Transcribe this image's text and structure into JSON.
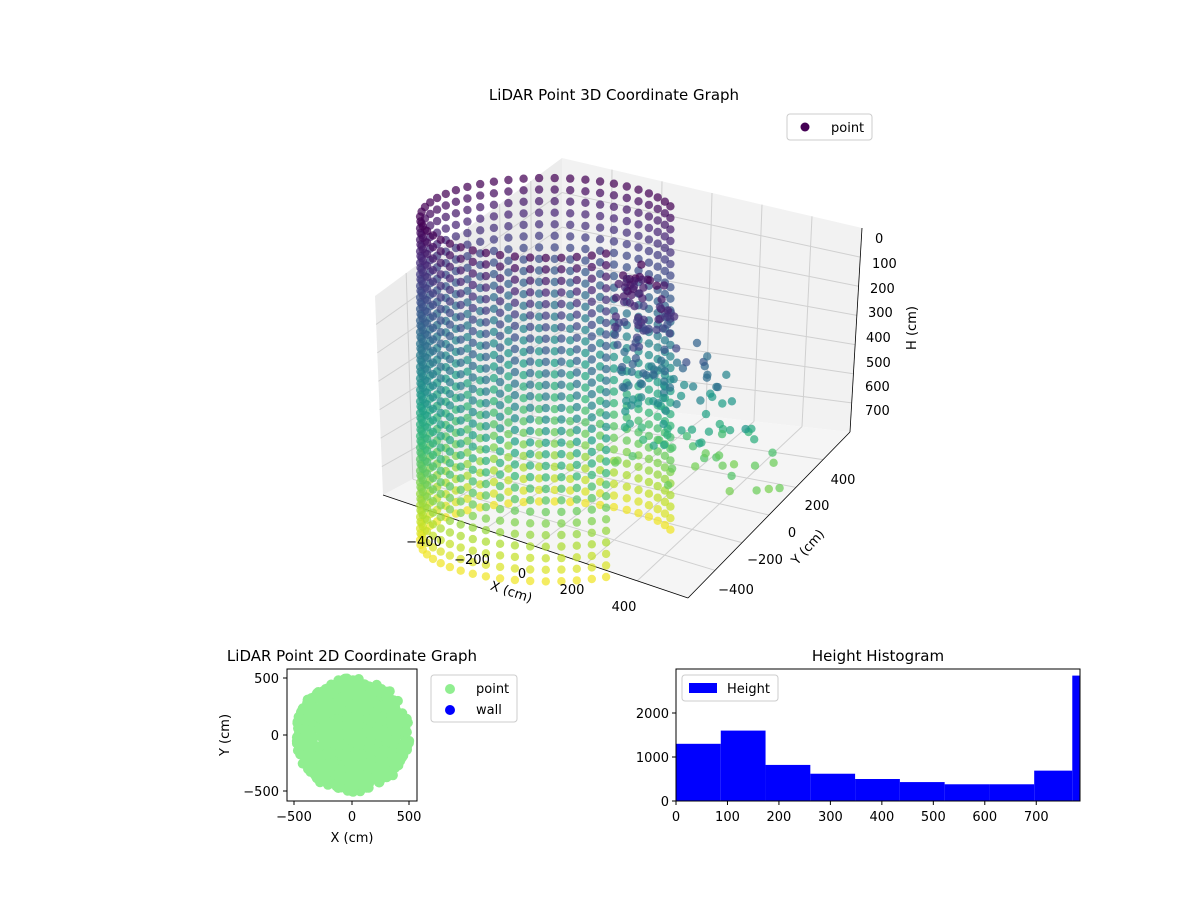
{
  "chart_data": [
    {
      "type": "scatter",
      "projection": "3d",
      "title": "LiDAR Point 3D Coordinate Graph",
      "xlabel": "X (cm)",
      "ylabel": "Y (cm)",
      "zlabel": "H (cm)",
      "xticks": [
        "−400",
        "−200",
        "0",
        "200",
        "400"
      ],
      "yticks": [
        "−400",
        "−200",
        "0",
        "200",
        "400"
      ],
      "zticks": [
        "0",
        "100",
        "200",
        "300",
        "400",
        "500",
        "600",
        "700"
      ],
      "xlim": [
        -500,
        500
      ],
      "ylim": [
        -500,
        500
      ],
      "zlim": [
        0,
        780
      ],
      "z_inverted": true,
      "colormap": "viridis",
      "legend": {
        "entries": [
          "point"
        ],
        "placement": "top-right",
        "marker_color": "#440154"
      },
      "series": [
        {
          "name": "point",
          "description_of_shape": "cylindrical wall of points, radius ~490 cm, height 0-780 cm, plus inner scattered returns",
          "radius_cm": 490,
          "h_range": [
            0,
            780
          ],
          "points": [
            {
              "x": 480,
              "y": 100,
              "h": 60
            },
            {
              "x": 470,
              "y": -150,
              "h": 120
            },
            {
              "x": 400,
              "y": 280,
              "h": 200
            },
            {
              "x": 300,
              "y": 380,
              "h": 300
            },
            {
              "x": -100,
              "y": 480,
              "h": 400
            },
            {
              "x": -350,
              "y": 340,
              "h": 500
            },
            {
              "x": -470,
              "y": 120,
              "h": 600
            },
            {
              "x": -460,
              "y": -180,
              "h": 700
            },
            {
              "x": -250,
              "y": -420,
              "h": 750
            },
            {
              "x": 100,
              "y": -480,
              "h": 650
            },
            {
              "x": 350,
              "y": -340,
              "h": 550
            },
            {
              "x": 200,
              "y": 50,
              "h": 350
            }
          ]
        }
      ]
    },
    {
      "type": "scatter",
      "title": "LiDAR Point 2D Coordinate Graph",
      "xlabel": "X (cm)",
      "ylabel": "Y (cm)",
      "xticks": [
        "−500",
        "0",
        "500"
      ],
      "yticks": [
        "−500",
        "0",
        "500"
      ],
      "xlim": [
        -570,
        570
      ],
      "ylim": [
        -570,
        570
      ],
      "legend": {
        "entries": [
          "point",
          "wall"
        ],
        "placement": "right-outside",
        "colors": [
          "#90ee90",
          "#0000ff"
        ]
      },
      "series": [
        {
          "name": "point",
          "color": "#90ee90",
          "shape": "filled disc, radius ~500 cm, right-side edge ragged between x=300 and x=480"
        },
        {
          "name": "wall",
          "color": "#0000ff",
          "points": []
        }
      ]
    },
    {
      "type": "bar",
      "title": "Height Histogram",
      "legend": {
        "entries": [
          "Height"
        ],
        "placement": "top-left",
        "colors": [
          "#0000ff"
        ]
      },
      "xticks": [
        "0",
        "100",
        "200",
        "300",
        "400",
        "500",
        "600",
        "700"
      ],
      "yticks": [
        "0",
        "1000",
        "2000"
      ],
      "xlim": [
        0,
        785
      ],
      "ylim": [
        0,
        3000
      ],
      "bins": [
        {
          "from": 0,
          "to": 87,
          "count": 1300
        },
        {
          "from": 87,
          "to": 174,
          "count": 1600
        },
        {
          "from": 174,
          "to": 261,
          "count": 820
        },
        {
          "from": 261,
          "to": 348,
          "count": 620
        },
        {
          "from": 348,
          "to": 435,
          "count": 500
        },
        {
          "from": 435,
          "to": 522,
          "count": 430
        },
        {
          "from": 522,
          "to": 609,
          "count": 380
        },
        {
          "from": 609,
          "to": 696,
          "count": 380
        },
        {
          "from": 696,
          "to": 770,
          "count": 690
        },
        {
          "from": 770,
          "to": 785,
          "count": 2850
        }
      ],
      "series": [
        {
          "name": "Height",
          "color": "#0000ff"
        }
      ]
    }
  ]
}
